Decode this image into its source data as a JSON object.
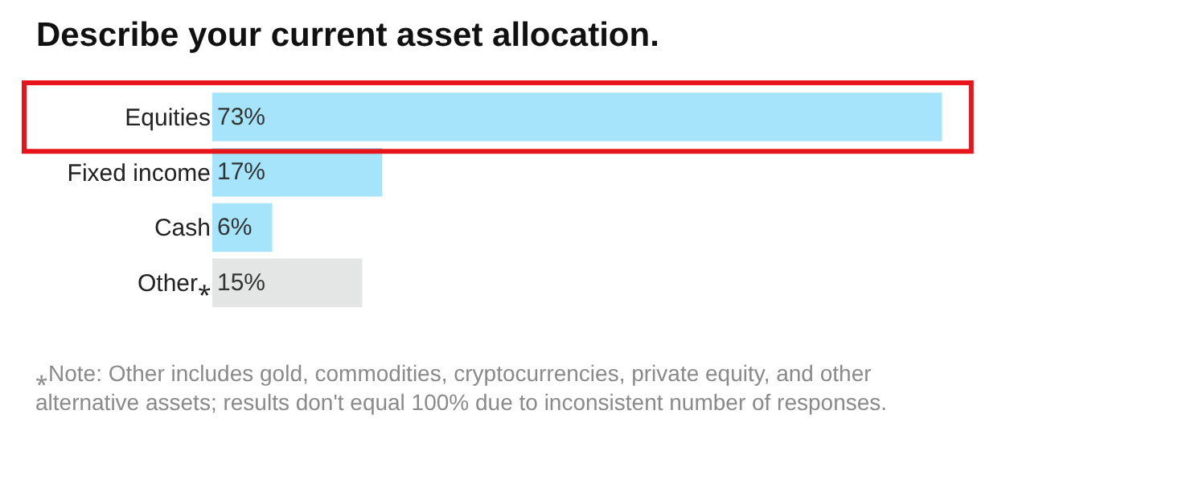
{
  "chart_data": {
    "type": "bar",
    "orientation": "horizontal",
    "title": "Describe your current asset allocation.",
    "categories": [
      "Equities",
      "Fixed income",
      "Cash",
      "Other⁎"
    ],
    "values": [
      73,
      17,
      6,
      15
    ],
    "colors": [
      "#a6e4fb",
      "#a6e4fb",
      "#a6e4fb",
      "#e4e6e5"
    ],
    "value_labels": [
      "73%",
      "17%",
      "6%",
      "15%"
    ],
    "annotations": [
      "⁎Note: Other includes gold, commodities, cryptocurrencies, private equity, and other alternative assets; results don't equal 100% due to inconsistent number of responses."
    ],
    "legend": false
  }
}
